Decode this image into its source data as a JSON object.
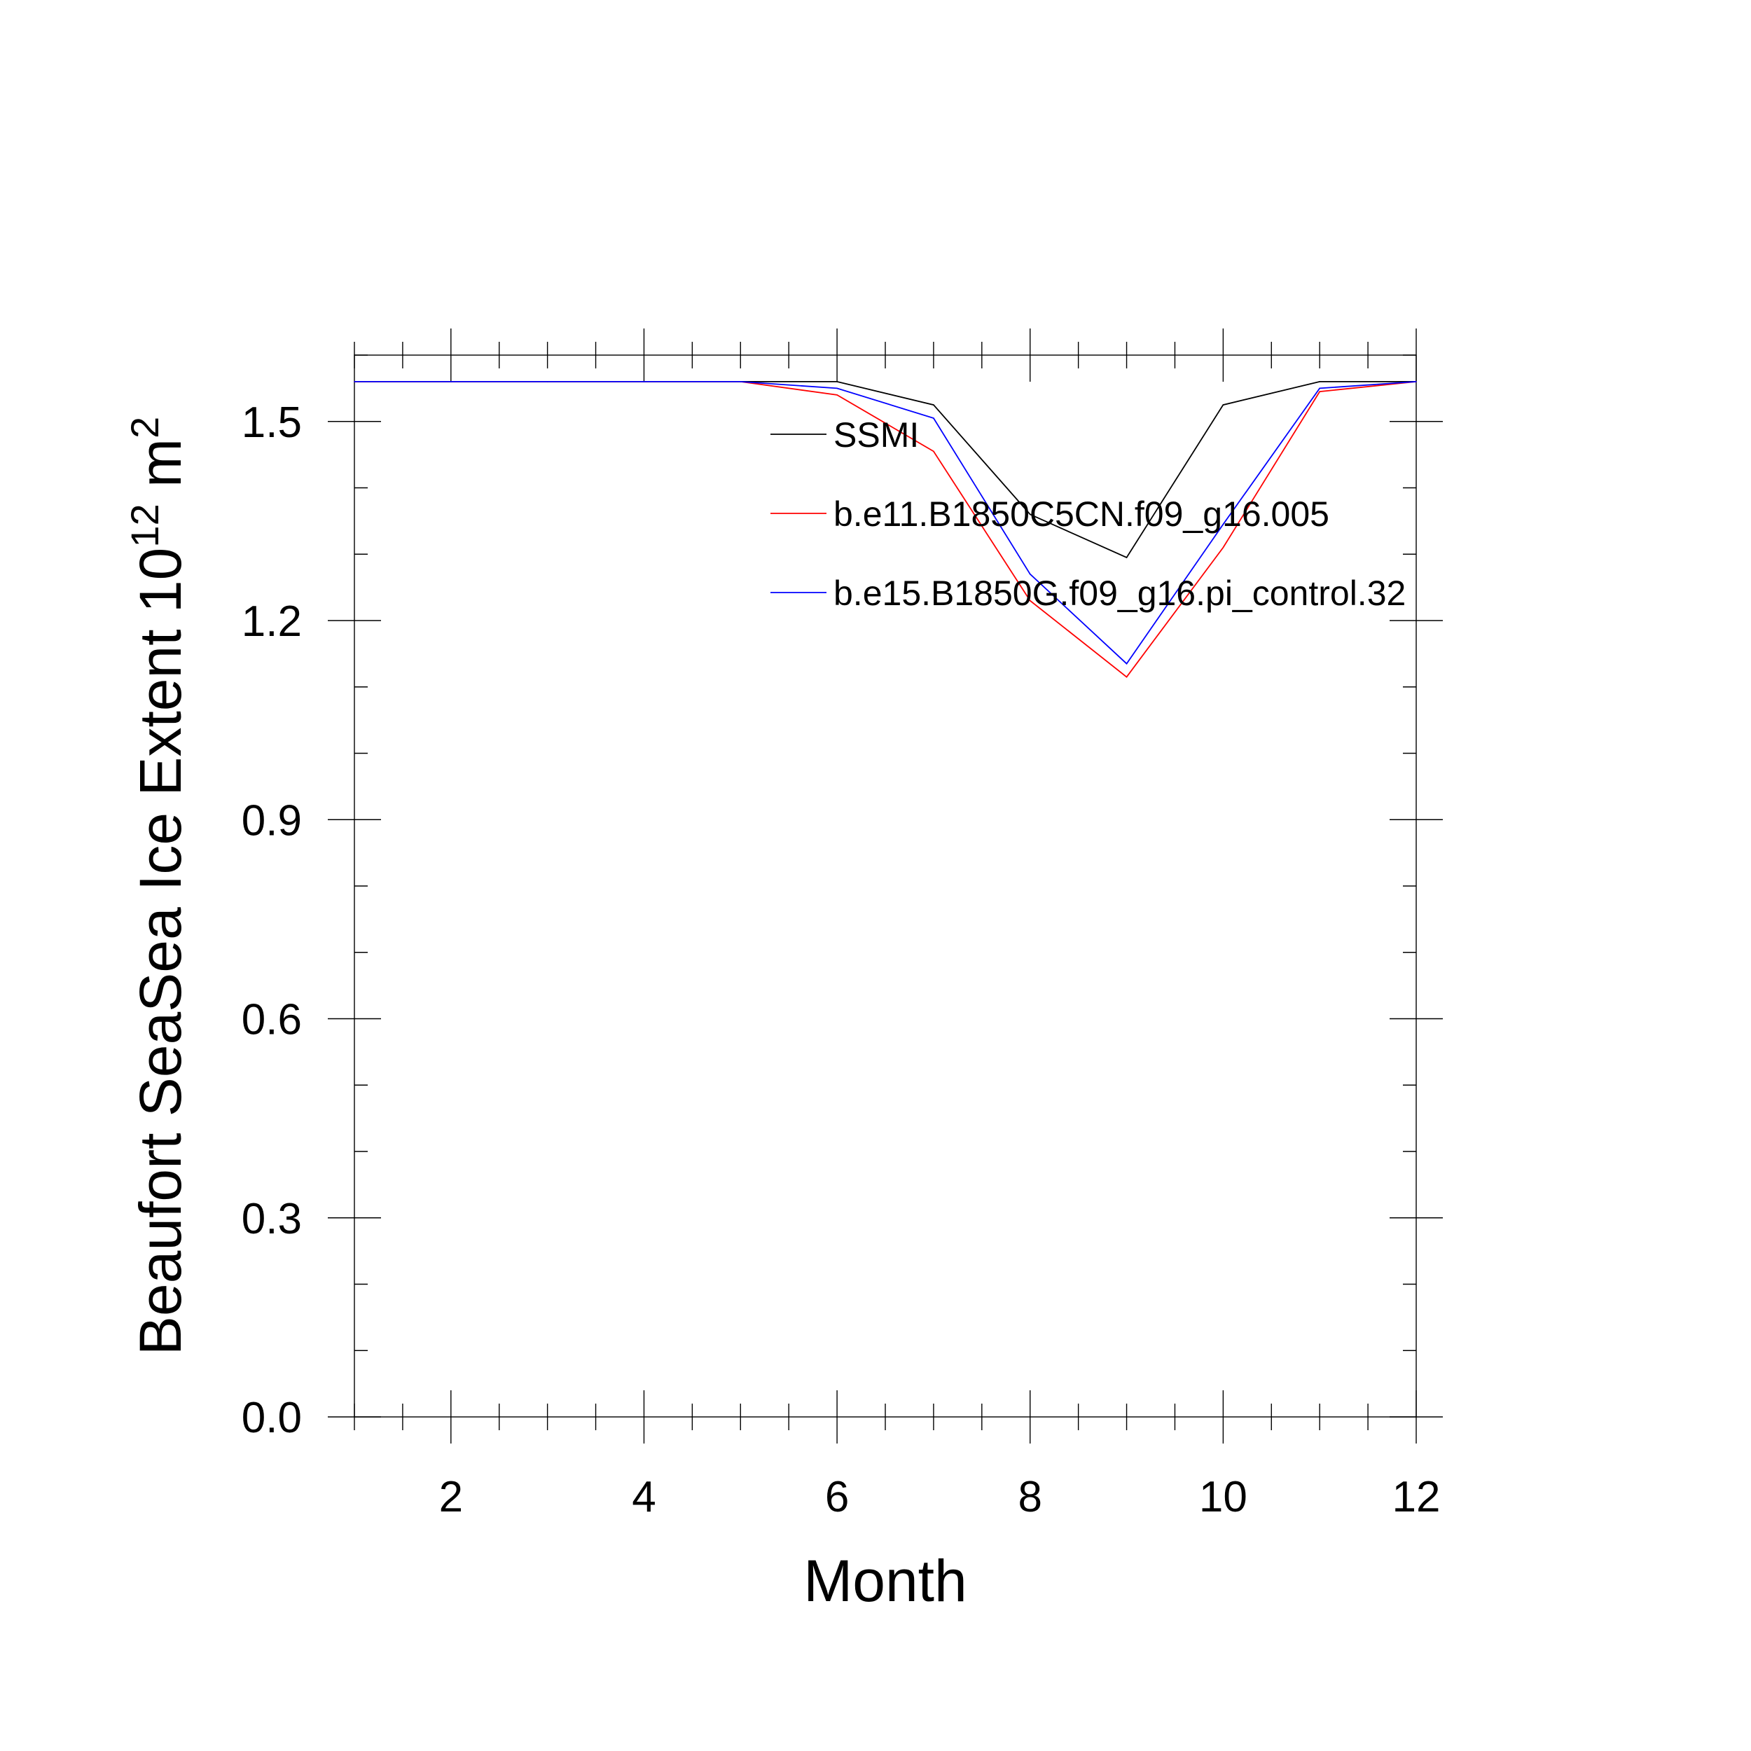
{
  "chart_data": {
    "type": "line",
    "xlabel": "Month",
    "ylabel": {
      "text": "Beaufort SeaSea Ice Extent 10",
      "exp1": "12",
      "unit": " m",
      "exp2": "2"
    },
    "xlim": [
      1,
      12
    ],
    "ylim": [
      0,
      1.6
    ],
    "x_ticks": [
      2,
      4,
      6,
      8,
      10,
      12
    ],
    "x_tick_labels": [
      "2",
      "4",
      "6",
      "8",
      "10",
      "12"
    ],
    "y_ticks": [
      0.0,
      0.3,
      0.6,
      0.9,
      1.2,
      1.5
    ],
    "y_tick_labels": [
      "0.0",
      "0.3",
      "0.6",
      "0.9",
      "1.2",
      "1.5"
    ],
    "grid": false,
    "legend_position": "top-right",
    "x": [
      1,
      2,
      3,
      4,
      5,
      6,
      7,
      8,
      9,
      10,
      11,
      12
    ],
    "series": [
      {
        "name": "SSMI",
        "color": "#000000",
        "values": [
          1.56,
          1.56,
          1.56,
          1.56,
          1.56,
          1.56,
          1.525,
          1.36,
          1.295,
          1.525,
          1.56,
          1.56
        ]
      },
      {
        "name": "b.e11.B1850C5CN.f09_g16.005",
        "color": "#ff0000",
        "values": [
          1.56,
          1.56,
          1.56,
          1.56,
          1.56,
          1.54,
          1.455,
          1.23,
          1.115,
          1.31,
          1.545,
          1.56
        ]
      },
      {
        "name": "b.e15.B1850G.f09_g16.pi_control.32",
        "color": "#0000ff",
        "values": [
          1.56,
          1.56,
          1.56,
          1.56,
          1.56,
          1.55,
          1.505,
          1.27,
          1.135,
          1.345,
          1.55,
          1.56
        ]
      }
    ]
  }
}
